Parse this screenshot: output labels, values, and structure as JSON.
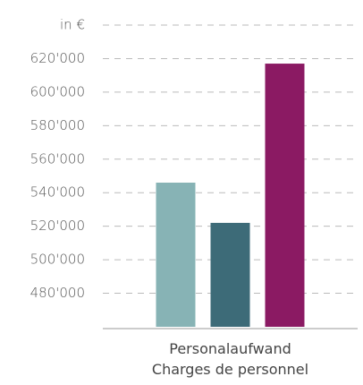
{
  "chart_data": {
    "type": "bar",
    "categories": [
      "Personalaufwand\nCharges de personnel"
    ],
    "series": [
      {
        "color": "#87b3b5",
        "values": [
          546000
        ]
      },
      {
        "color": "#3d6b78",
        "values": [
          522000
        ]
      },
      {
        "color": "#8b1a63",
        "values": [
          617000
        ]
      }
    ],
    "ylim": [
      460000,
      640000
    ],
    "yticks": [
      {
        "value": 480000,
        "label": "480'000"
      },
      {
        "value": 500000,
        "label": "500'000"
      },
      {
        "value": 520000,
        "label": "520'000"
      },
      {
        "value": 540000,
        "label": "540'000"
      },
      {
        "value": 560000,
        "label": "560'000"
      },
      {
        "value": 580000,
        "label": "580'000"
      },
      {
        "value": 600000,
        "label": "600'000"
      },
      {
        "value": 620000,
        "label": "620'000"
      },
      {
        "value": 640000,
        "label": "in €"
      }
    ],
    "grid": true
  }
}
